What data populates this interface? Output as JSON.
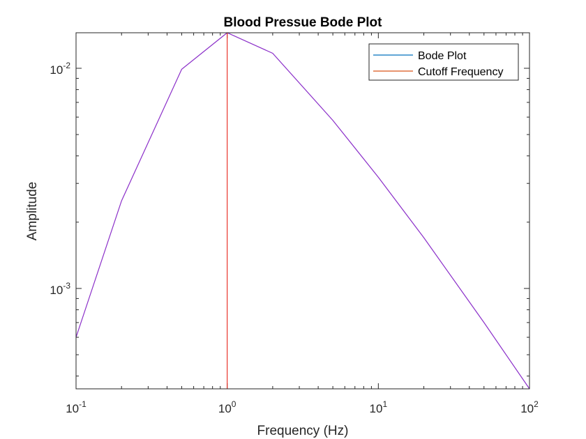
{
  "chart_data": {
    "type": "line",
    "title": "Blood Pressue Bode Plot",
    "xlabel": "Frequency (Hz)",
    "ylabel": "Amplitude",
    "xscale": "log",
    "yscale": "log",
    "xlim": [
      0.1,
      100
    ],
    "ylim": [
      0.00035,
      0.0145
    ],
    "grid": false,
    "legend_placement": "top-right",
    "x_ticks": [
      {
        "base": "10",
        "exp": "-1",
        "value": 0.1
      },
      {
        "base": "10",
        "exp": "0",
        "value": 1
      },
      {
        "base": "10",
        "exp": "1",
        "value": 10
      },
      {
        "base": "10",
        "exp": "2",
        "value": 100
      }
    ],
    "y_ticks": [
      {
        "base": "10",
        "exp": "-2",
        "value": 0.01
      },
      {
        "base": "10",
        "exp": "-3",
        "value": 0.001
      }
    ],
    "series": [
      {
        "name": "Bode Plot",
        "color": "#8b2fc9",
        "legend_color": "#0072bd",
        "x": [
          0.1,
          0.2,
          0.5,
          1,
          2,
          5,
          10,
          20,
          50,
          100
        ],
        "y": [
          0.0006,
          0.0025,
          0.0099,
          0.0145,
          0.0117,
          0.0058,
          0.0032,
          0.0017,
          0.0007,
          0.00035
        ]
      },
      {
        "name": "Cutoff Frequency",
        "color": "#e8332a",
        "legend_color": "#d95319",
        "x": [
          1,
          1
        ],
        "y": [
          0.00035,
          0.0145
        ]
      }
    ]
  }
}
